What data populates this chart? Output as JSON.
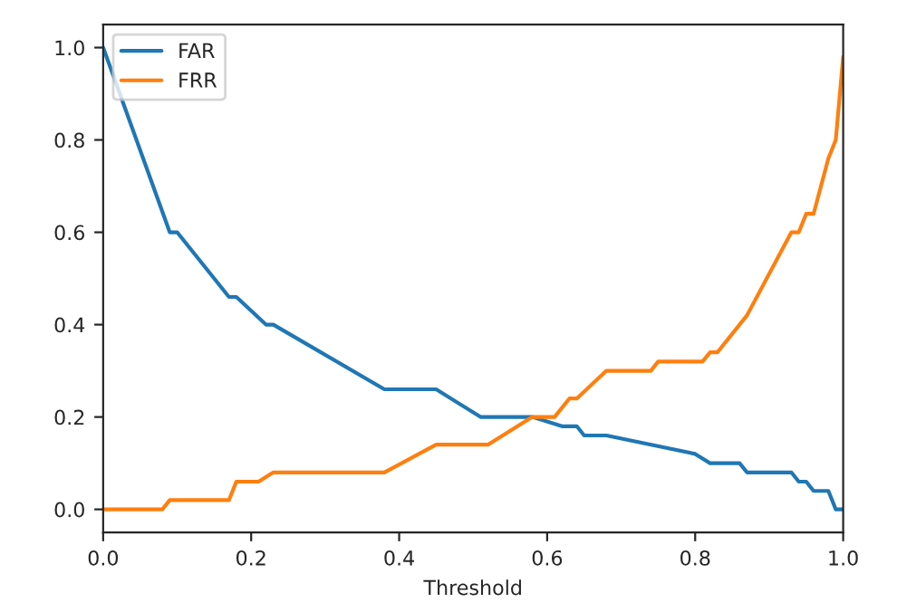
{
  "chart_data": {
    "type": "line",
    "xlabel": "Threshold",
    "xlim": [
      0,
      1
    ],
    "ylim": [
      -0.05,
      1.05
    ],
    "xticks": [
      {
        "value": 0,
        "label": "0.0"
      },
      {
        "value": 0.2,
        "label": "0.2"
      },
      {
        "value": 0.4,
        "label": "0.4"
      },
      {
        "value": 0.6,
        "label": "0.6"
      },
      {
        "value": 0.8,
        "label": "0.8"
      },
      {
        "value": 1,
        "label": "1.0"
      }
    ],
    "yticks": [
      {
        "value": 0,
        "label": "0.0"
      },
      {
        "value": 0.2,
        "label": "0.2"
      },
      {
        "value": 0.4,
        "label": "0.4"
      },
      {
        "value": 0.6,
        "label": "0.6"
      },
      {
        "value": 0.8,
        "label": "0.8"
      },
      {
        "value": 1,
        "label": "1.0"
      }
    ],
    "grid": false,
    "legend": "top left",
    "marker": "none",
    "line_style": "solid",
    "series": [
      {
        "name": "FAR",
        "color": "#1f77b4",
        "x": [
          0,
          0.09,
          0.1,
          0.17,
          0.18,
          0.22,
          0.23,
          0.38,
          0.45,
          0.51,
          0.58,
          0.62,
          0.64,
          0.65,
          0.68,
          0.8,
          0.82,
          0.86,
          0.87,
          0.93,
          0.94,
          0.95,
          0.96,
          0.98,
          0.99,
          1.0
        ],
        "values": [
          1.0,
          0.6,
          0.6,
          0.46,
          0.46,
          0.4,
          0.4,
          0.26,
          0.26,
          0.2,
          0.2,
          0.18,
          0.18,
          0.16,
          0.16,
          0.12,
          0.1,
          0.1,
          0.08,
          0.08,
          0.06,
          0.06,
          0.04,
          0.04,
          0.0,
          0.0
        ]
      },
      {
        "name": "FRR",
        "color": "#ff7f0e",
        "x": [
          0,
          0.08,
          0.09,
          0.17,
          0.18,
          0.21,
          0.23,
          0.38,
          0.45,
          0.52,
          0.58,
          0.61,
          0.63,
          0.64,
          0.68,
          0.74,
          0.75,
          0.81,
          0.82,
          0.83,
          0.87,
          0.93,
          0.94,
          0.95,
          0.96,
          0.98,
          0.99,
          1.0
        ],
        "values": [
          0,
          0,
          0.02,
          0.02,
          0.06,
          0.06,
          0.08,
          0.08,
          0.14,
          0.14,
          0.2,
          0.2,
          0.24,
          0.24,
          0.3,
          0.3,
          0.32,
          0.32,
          0.34,
          0.34,
          0.42,
          0.6,
          0.6,
          0.64,
          0.64,
          0.76,
          0.8,
          0.98
        ]
      }
    ]
  }
}
